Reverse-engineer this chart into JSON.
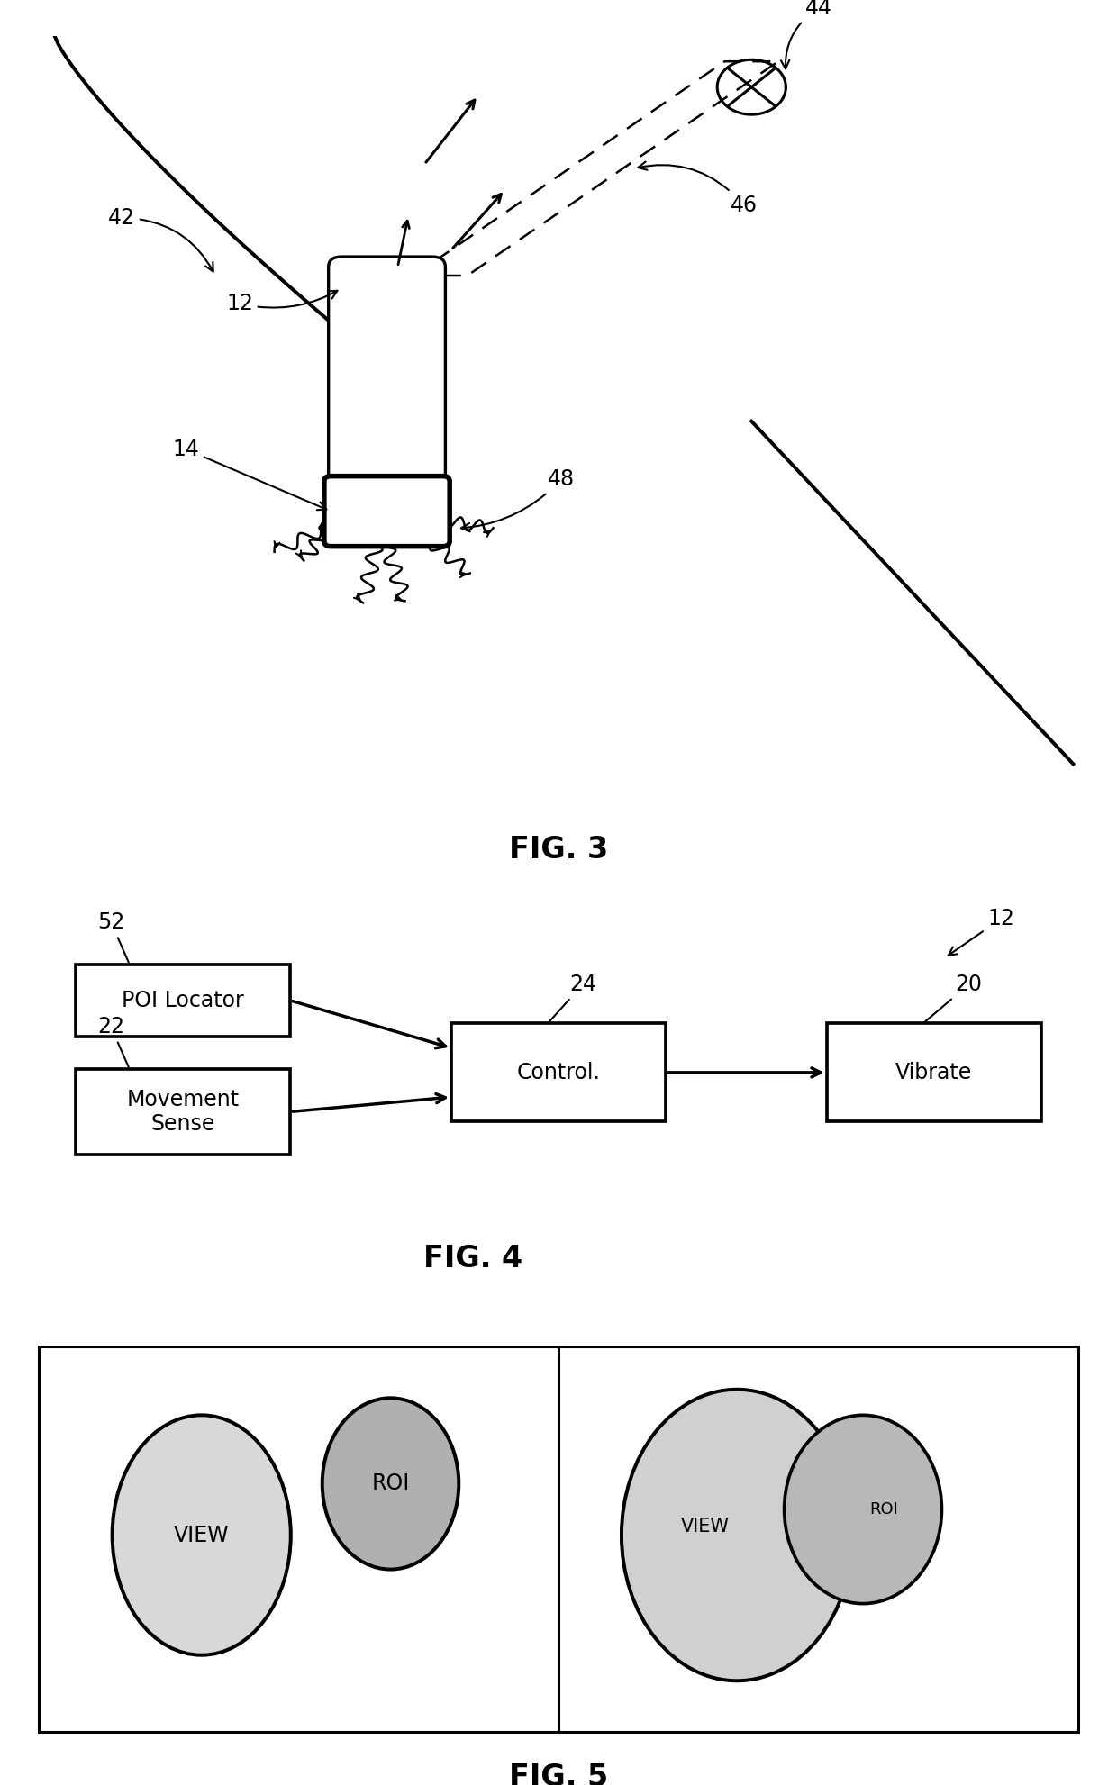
{
  "fig_width": 12.4,
  "fig_height": 19.82,
  "bg_color": "#ffffff",
  "fig3_caption": "FIG. 3",
  "fig4_caption": "FIG. 4",
  "fig5_caption": "FIG. 5",
  "label_42": "42",
  "label_44": "44",
  "label_46": "46",
  "label_12a": "12",
  "label_14": "14",
  "label_48": "48",
  "label_52": "52",
  "label_22": "22",
  "label_24": "24",
  "label_20": "20",
  "label_12b": "12",
  "box_poi": "POI Locator",
  "box_move": "Movement\nSense",
  "box_control": "Control.",
  "box_vibrate": "Vibrate",
  "view_label": "VIEW",
  "roi_label": "ROI",
  "line_color": "#000000",
  "font_size_caption": 24,
  "font_size_label": 17,
  "font_size_box": 17
}
